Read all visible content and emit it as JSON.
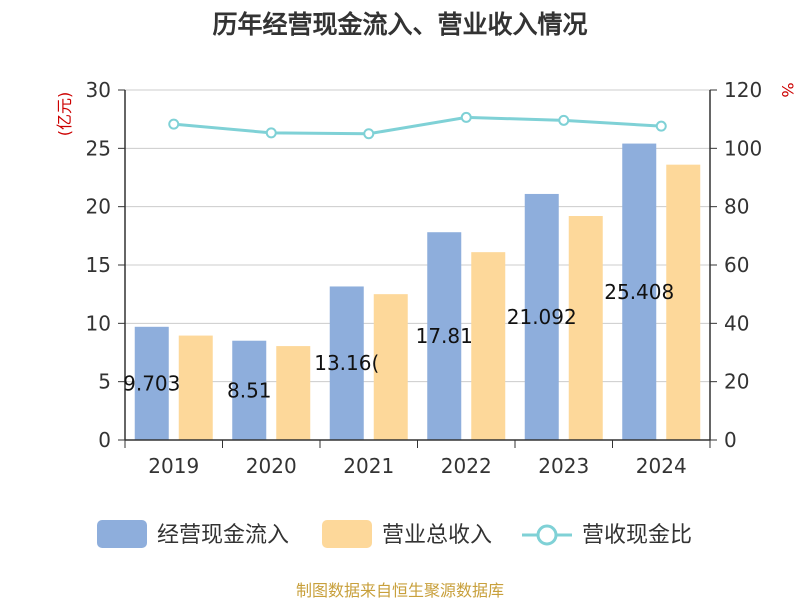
{
  "chart_data": {
    "type": "bar",
    "title": "历年经营现金流入、营业收入情况",
    "categories": [
      "2019",
      "2020",
      "2021",
      "2022",
      "2023",
      "2024"
    ],
    "series": [
      {
        "name": "经营现金流入",
        "type": "bar",
        "axis": "left",
        "values": [
          9.703,
          8.51,
          13.16,
          17.81,
          21.09,
          25.408
        ],
        "labels": [
          "9.703",
          "8.51",
          "13.16(",
          "17.81",
          "21.092",
          "25.408"
        ]
      },
      {
        "name": "营业总收入",
        "type": "bar",
        "axis": "left",
        "values": [
          8.95,
          8.05,
          12.5,
          16.1,
          19.2,
          23.6
        ]
      },
      {
        "name": "营收现金比",
        "type": "line",
        "axis": "right",
        "values": [
          108.3,
          105.3,
          105.0,
          110.6,
          109.6,
          107.6
        ]
      }
    ],
    "y_left": {
      "label": "(亿元)",
      "ylim": [
        0,
        30
      ],
      "ticks": [
        "0",
        "5",
        "10",
        "15",
        "20",
        "25",
        "30"
      ]
    },
    "y_right": {
      "label": "%",
      "ylim": [
        0,
        120
      ],
      "ticks": [
        "0",
        "20",
        "40",
        "60",
        "80",
        "100",
        "120"
      ]
    },
    "grid": true,
    "legend_position": "bottom",
    "colors": {
      "cash_inflow": "#8eaedc",
      "revenue": "#fdd89a",
      "ratio": "#7fd1d6"
    }
  },
  "source": "制图数据来自恒生聚源数据库"
}
